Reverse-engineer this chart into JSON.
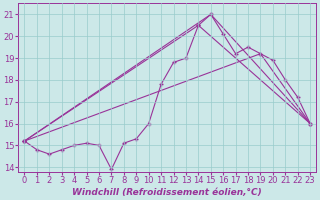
{
  "background_color": "#cce8e8",
  "line_color": "#993399",
  "grid_color": "#99cccc",
  "xlabel": "Windchill (Refroidissement éolien,°C)",
  "xlabel_fontsize": 6.5,
  "tick_fontsize": 6,
  "xlim": [
    -0.5,
    23.5
  ],
  "ylim": [
    13.8,
    21.5
  ],
  "yticks": [
    14,
    15,
    16,
    17,
    18,
    19,
    20,
    21
  ],
  "xticks": [
    0,
    1,
    2,
    3,
    4,
    5,
    6,
    7,
    8,
    9,
    10,
    11,
    12,
    13,
    14,
    15,
    16,
    17,
    18,
    19,
    20,
    21,
    22,
    23
  ],
  "series1_x": [
    0,
    1,
    2,
    3,
    4,
    5,
    6,
    7,
    8,
    9,
    10,
    11,
    12,
    13,
    14,
    15,
    16,
    17,
    18,
    19,
    20,
    21,
    22,
    23
  ],
  "series1_y": [
    15.2,
    14.8,
    14.6,
    14.8,
    15.0,
    15.1,
    15.0,
    13.9,
    15.1,
    15.3,
    16.0,
    17.8,
    18.8,
    19.0,
    20.5,
    21.0,
    20.1,
    19.2,
    19.5,
    19.2,
    18.9,
    18.0,
    17.2,
    16.0
  ],
  "series2_x": [
    0,
    14,
    23
  ],
  "series2_y": [
    15.2,
    20.5,
    16.0
  ],
  "series3_x": [
    0,
    15,
    23
  ],
  "series3_y": [
    15.2,
    21.0,
    16.0
  ],
  "series4_x": [
    0,
    19,
    23
  ],
  "series4_y": [
    15.2,
    19.2,
    16.0
  ],
  "marker": "+",
  "markersize": 3.5,
  "markeredgewidth": 1.0,
  "linewidth": 0.8
}
